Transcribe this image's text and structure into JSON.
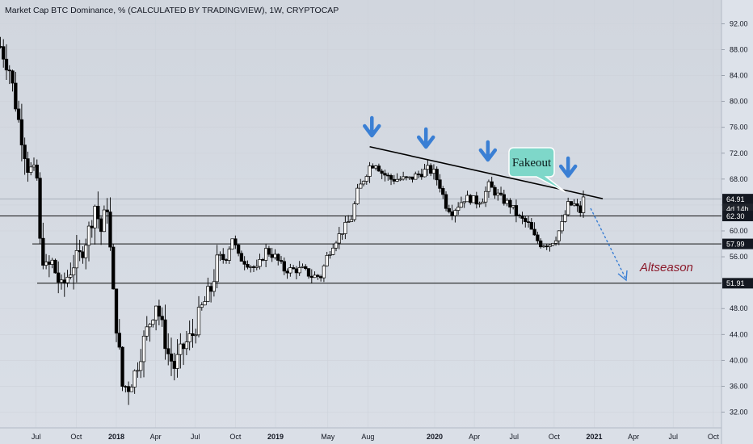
{
  "title": "Market Cap BTC Dominance, % (CALCULATED BY TRADINGVIEW), 1W, CRYPTOCAP",
  "chart_data": {
    "type": "candlestick",
    "ylim": [
      30,
      94
    ],
    "y_ticks": [
      "32.00",
      "36.00",
      "40.00",
      "44.00",
      "48.00",
      "52.00",
      "56.00",
      "60.00",
      "64.00",
      "68.00",
      "72.00",
      "76.00",
      "80.00",
      "84.00",
      "88.00",
      "92.00"
    ],
    "x_ticks": [
      {
        "label": "Jul",
        "date": "2017-07-01"
      },
      {
        "label": "Oct",
        "date": "2017-10-01"
      },
      {
        "label": "2018",
        "date": "2018-01-01",
        "bold": true
      },
      {
        "label": "Apr",
        "date": "2018-04-01"
      },
      {
        "label": "Jul",
        "date": "2018-07-01"
      },
      {
        "label": "Oct",
        "date": "2018-10-01"
      },
      {
        "label": "2019",
        "date": "2019-01-01",
        "bold": true
      },
      {
        "label": "May",
        "date": "2019-05-01"
      },
      {
        "label": "Aug",
        "date": "2019-08-01"
      },
      {
        "label": "2020",
        "date": "2020-01-01",
        "bold": true
      },
      {
        "label": "Apr",
        "date": "2020-04-01"
      },
      {
        "label": "Jul",
        "date": "2020-07-01"
      },
      {
        "label": "Oct",
        "date": "2020-10-01"
      },
      {
        "label": "2021",
        "date": "2021-01-01",
        "bold": true
      },
      {
        "label": "Apr",
        "date": "2021-04-01"
      },
      {
        "label": "Jul",
        "date": "2021-07-01"
      },
      {
        "label": "Oct",
        "date": "2021-10-01"
      }
    ],
    "price_labels": [
      {
        "label": "64.91",
        "value": 64.91,
        "dark": true
      },
      {
        "label": "4d 14h",
        "value": 63.4,
        "dark": false
      },
      {
        "label": "62.30",
        "value": 62.3,
        "dark": true
      },
      {
        "label": "57.99",
        "value": 57.99,
        "dark": true
      },
      {
        "label": "51.91",
        "value": 51.91,
        "dark": true
      }
    ],
    "horizontal_levels": [
      62.3,
      57.99,
      51.91
    ],
    "last_price": 64.91,
    "trendline": {
      "from": {
        "date": "2019-08-05",
        "value": 73.0
      },
      "to": {
        "date": "2020-12-07",
        "value": 64.9
      }
    },
    "waypoints": [
      [
        "2017-04-10",
        88.5
      ],
      [
        "2017-05-01",
        85
      ],
      [
        "2017-05-22",
        77
      ],
      [
        "2017-06-12",
        70
      ],
      [
        "2017-07-03",
        68
      ],
      [
        "2017-07-10",
        58
      ],
      [
        "2017-07-24",
        54
      ],
      [
        "2017-08-07",
        55
      ],
      [
        "2017-08-28",
        51
      ],
      [
        "2017-09-11",
        53
      ],
      [
        "2017-09-25",
        55
      ],
      [
        "2017-10-09",
        56
      ],
      [
        "2017-10-30",
        60
      ],
      [
        "2017-11-13",
        64
      ],
      [
        "2017-11-27",
        60
      ],
      [
        "2017-12-11",
        64
      ],
      [
        "2017-12-18",
        57
      ],
      [
        "2017-12-25",
        50
      ],
      [
        "2018-01-08",
        41
      ],
      [
        "2018-01-15",
        36
      ],
      [
        "2018-01-29",
        36
      ],
      [
        "2018-02-12",
        38
      ],
      [
        "2018-03-05",
        43
      ],
      [
        "2018-03-19",
        46
      ],
      [
        "2018-04-02",
        49
      ],
      [
        "2018-04-16",
        45
      ],
      [
        "2018-04-30",
        41
      ],
      [
        "2018-05-14",
        39
      ],
      [
        "2018-06-04",
        42
      ],
      [
        "2018-06-25",
        44
      ],
      [
        "2018-07-16",
        48
      ],
      [
        "2018-08-06",
        51
      ],
      [
        "2018-08-20",
        55
      ],
      [
        "2018-09-10",
        56
      ],
      [
        "2018-09-24",
        59
      ],
      [
        "2018-10-08",
        56
      ],
      [
        "2018-10-29",
        55
      ],
      [
        "2018-11-19",
        54
      ],
      [
        "2018-12-10",
        57
      ],
      [
        "2018-12-31",
        56
      ],
      [
        "2019-01-21",
        54
      ],
      [
        "2019-02-11",
        54
      ],
      [
        "2019-03-04",
        54
      ],
      [
        "2019-03-25",
        53
      ],
      [
        "2019-04-15",
        53
      ],
      [
        "2019-04-29",
        56
      ],
      [
        "2019-05-13",
        58
      ],
      [
        "2019-06-03",
        60
      ],
      [
        "2019-06-24",
        62
      ],
      [
        "2019-07-08",
        66
      ],
      [
        "2019-07-22",
        68
      ],
      [
        "2019-08-05",
        70
      ],
      [
        "2019-08-19",
        70.5
      ],
      [
        "2019-09-02",
        69
      ],
      [
        "2019-09-23",
        68
      ],
      [
        "2019-10-14",
        68
      ],
      [
        "2019-11-04",
        68
      ],
      [
        "2019-11-18",
        68.5
      ],
      [
        "2019-12-02",
        69
      ],
      [
        "2019-12-16",
        69.5
      ],
      [
        "2019-12-30",
        69
      ],
      [
        "2020-01-13",
        67
      ],
      [
        "2020-01-27",
        64
      ],
      [
        "2020-02-10",
        63
      ],
      [
        "2020-02-24",
        64
      ],
      [
        "2020-03-09",
        65
      ],
      [
        "2020-03-23",
        65
      ],
      [
        "2020-04-06",
        64.5
      ],
      [
        "2020-04-20",
        65
      ],
      [
        "2020-05-04",
        67
      ],
      [
        "2020-05-18",
        66
      ],
      [
        "2020-06-01",
        65
      ],
      [
        "2020-06-22",
        64
      ],
      [
        "2020-07-13",
        62
      ],
      [
        "2020-08-03",
        61
      ],
      [
        "2020-08-17",
        59
      ],
      [
        "2020-08-31",
        58
      ],
      [
        "2020-09-21",
        58
      ],
      [
        "2020-10-05",
        59
      ],
      [
        "2020-10-19",
        61
      ],
      [
        "2020-11-02",
        64
      ],
      [
        "2020-11-16",
        64
      ],
      [
        "2020-11-30",
        63
      ],
      [
        "2020-12-07",
        64.91
      ]
    ]
  },
  "annotations": {
    "fakeout_label": "Fakeout",
    "altseason_label": "Altseason",
    "arrows_count": 4,
    "colors": {
      "up_candle": "#ffffff",
      "down_candle": "#000000",
      "arrow": "#3a7fd4",
      "fakeout_box": "#7ed7c9",
      "altseason_text": "#8b1a2b",
      "dotted_arrow": "#3a7fd4"
    }
  }
}
